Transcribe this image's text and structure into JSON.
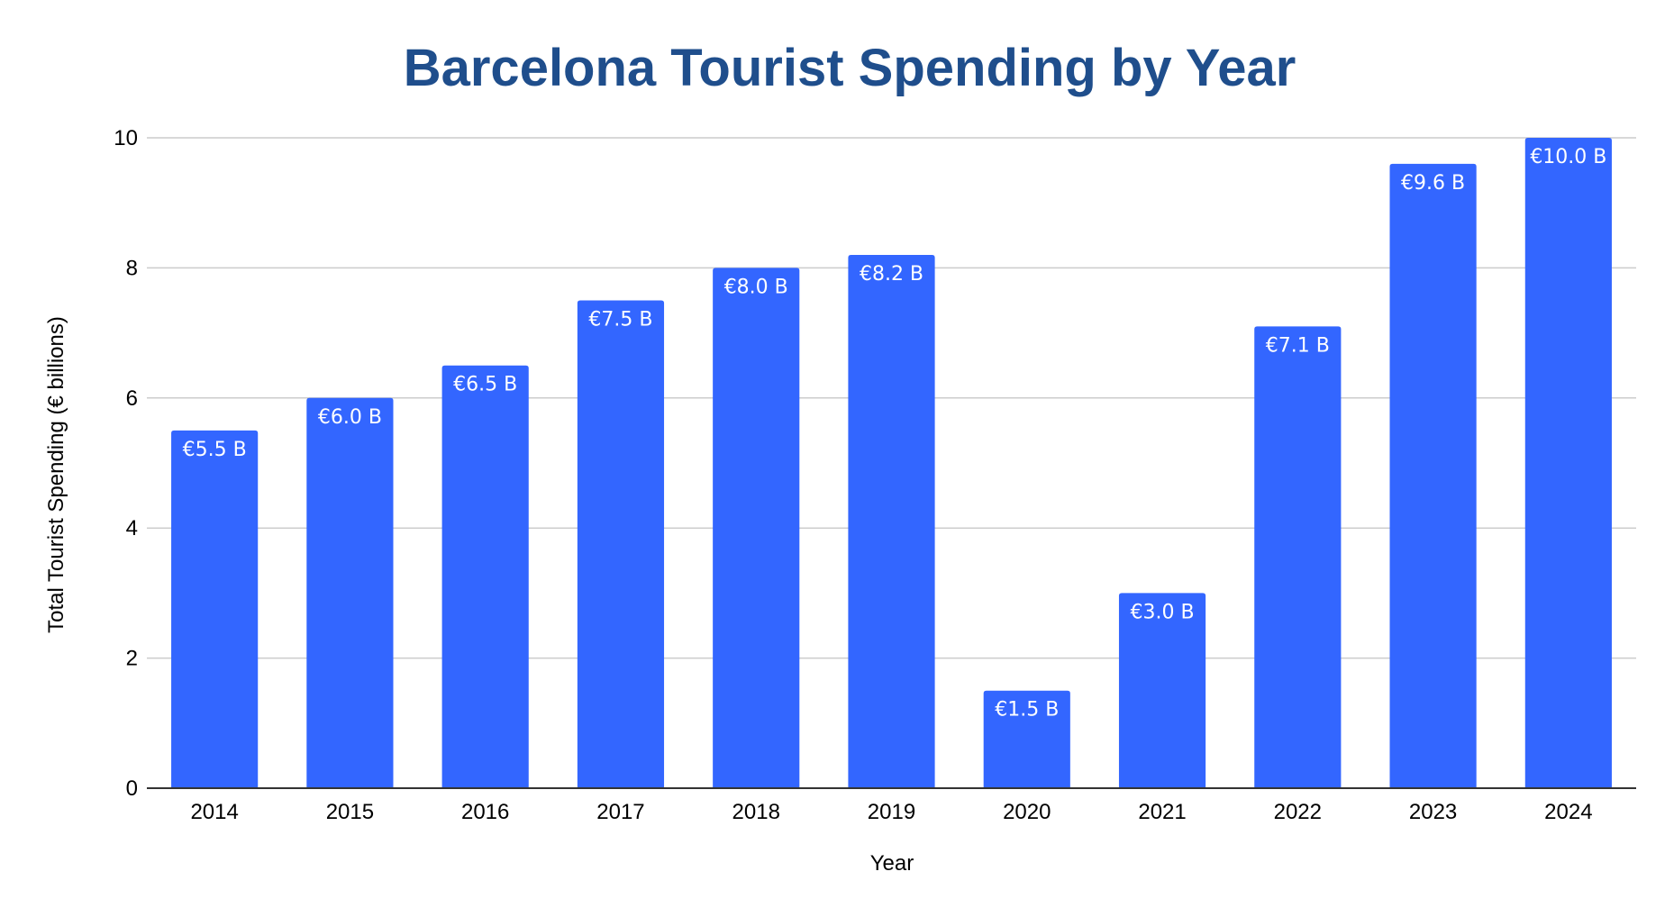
{
  "chart_data": {
    "type": "bar",
    "title": "Barcelona Tourist Spending by Year",
    "xlabel": "Year",
    "ylabel": "Total Tourist Spending (€ billions)",
    "categories": [
      "2014",
      "2015",
      "2016",
      "2017",
      "2018",
      "2019",
      "2020",
      "2021",
      "2022",
      "2023",
      "2024"
    ],
    "values": [
      5.5,
      6.0,
      6.5,
      7.5,
      8.0,
      8.2,
      1.5,
      3.0,
      7.1,
      9.6,
      10.0
    ],
    "data_labels": [
      "€5.5 B",
      "€6.0 B",
      "€6.5 B",
      "€7.5 B",
      "€8.0 B",
      "€8.2 B",
      "€1.5 B",
      "€3.0 B",
      "€7.1 B",
      "€9.6 B",
      "€10.0 B"
    ],
    "ylim": [
      0,
      10
    ],
    "yticks": [
      0,
      2,
      4,
      6,
      8,
      10
    ],
    "grid": true,
    "legend": "none",
    "colors": {
      "bar": "#3366ff",
      "title": "#1f4e8c",
      "grid": "#cccccc",
      "axis": "#333333"
    }
  }
}
